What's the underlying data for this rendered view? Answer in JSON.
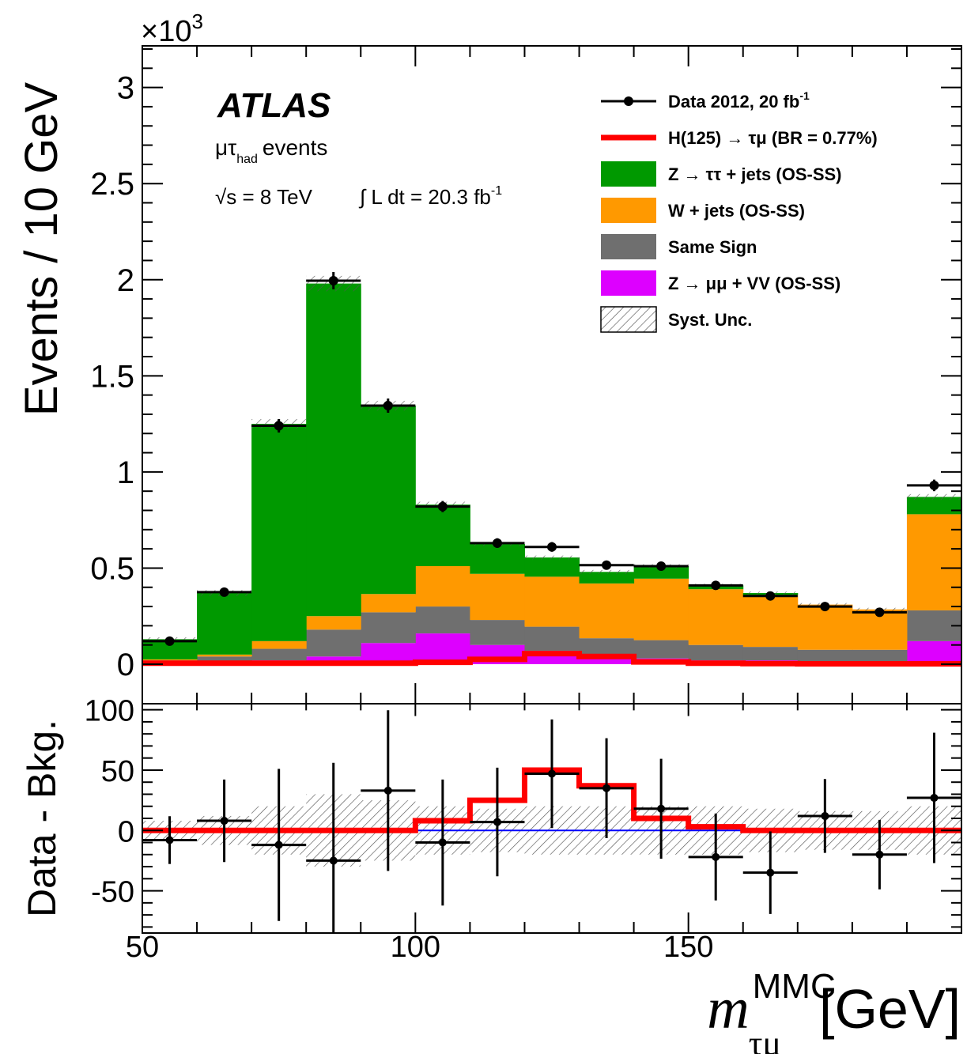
{
  "chart_data": [
    {
      "type": "bar",
      "stacked": true,
      "panel": "main",
      "experiment": "ATLAS",
      "annotations": [
        "μτ",
        "had",
        "events",
        "√s = 8 TeV",
        "∫ L dt = 20.3 fb",
        "-1"
      ],
      "ylabel": "Events / 10 GeV",
      "y_multiplier": "×10",
      "y_multiplier_exp": "3",
      "yunit_scale": 1000,
      "xlim": [
        50,
        200
      ],
      "ylim": [
        0,
        3200
      ],
      "yticks": [
        0,
        500,
        1000,
        1500,
        2000,
        2500,
        3000
      ],
      "ytick_labels": [
        "0",
        "0.5",
        "1",
        "1.5",
        "2",
        "2.5",
        "3"
      ],
      "bin_edges": [
        50,
        60,
        70,
        80,
        90,
        100,
        110,
        120,
        130,
        140,
        150,
        160,
        170,
        180,
        190,
        200
      ],
      "stack_order_bottom_to_top": [
        "zmumu_vv",
        "same_sign",
        "wjets",
        "ztautau"
      ],
      "series": [
        {
          "key": "zmumu_vv",
          "name": "Z → μμ + VV (OS-SS)",
          "color": "#dd00ff",
          "values": [
            5,
            10,
            20,
            40,
            110,
            160,
            100,
            70,
            50,
            30,
            20,
            20,
            15,
            15,
            120
          ]
        },
        {
          "key": "same_sign",
          "name": "Same Sign",
          "color": "#6f6f6f",
          "values": [
            15,
            30,
            60,
            140,
            160,
            140,
            130,
            125,
            85,
            95,
            80,
            70,
            60,
            60,
            160
          ]
        },
        {
          "key": "wjets",
          "name": "W + jets (OS-SS)",
          "color": "#ff9900",
          "values": [
            5,
            10,
            40,
            70,
            95,
            210,
            240,
            260,
            285,
            320,
            290,
            270,
            235,
            210,
            500
          ]
        },
        {
          "key": "ztautau",
          "name": "Z → ττ + jets (OS-SS)",
          "color": "#009900",
          "values": [
            105,
            320,
            1130,
            1730,
            980,
            320,
            155,
            100,
            60,
            65,
            20,
            10,
            0,
            0,
            90
          ]
        }
      ],
      "signal": {
        "name": "H(125) → τμ (BR = 0.77%)",
        "color": "#ff0000",
        "values": [
          5,
          5,
          5,
          5,
          5,
          10,
          25,
          55,
          40,
          12,
          5,
          3,
          2,
          2,
          2
        ]
      },
      "data": {
        "name": "Data 2012, 20 fb",
        "name_sup": "-1",
        "color": "#000000",
        "x": [
          55,
          65,
          75,
          85,
          95,
          105,
          115,
          125,
          135,
          145,
          155,
          165,
          175,
          185,
          195
        ],
        "y": [
          120,
          375,
          1240,
          1995,
          1345,
          820,
          630,
          610,
          515,
          510,
          410,
          355,
          300,
          270,
          930
        ],
        "yerr": [
          11,
          19,
          35,
          45,
          37,
          29,
          25,
          25,
          23,
          23,
          20,
          19,
          17,
          16,
          30
        ]
      },
      "syst_band": {
        "name": "Syst. Unc.",
        "values": [
          10,
          15,
          25,
          40,
          25,
          15,
          10,
          10,
          10,
          10,
          8,
          8,
          8,
          8,
          15
        ]
      },
      "legend": [
        {
          "label": "Data 2012, 20 fb",
          "sup": "-1",
          "style": "data"
        },
        {
          "label": "H(125) → τμ (BR = 0.77%)",
          "style": "line",
          "color": "#ff0000"
        },
        {
          "label": "Z → ττ + jets (OS-SS)",
          "style": "fill",
          "color": "#009900"
        },
        {
          "label": "W + jets (OS-SS)",
          "style": "fill",
          "color": "#ff9900"
        },
        {
          "label": "Same Sign",
          "style": "fill",
          "color": "#6f6f6f"
        },
        {
          "label": "Z → μμ + VV (OS-SS)",
          "style": "fill",
          "color": "#dd00ff"
        },
        {
          "label": "Syst. Unc.",
          "style": "hatch"
        }
      ],
      "legend_position": "top-right"
    },
    {
      "type": "scatter",
      "panel": "ratio",
      "ylabel": "Data - Bkg.",
      "xlabel": "m",
      "xlabel_sup": "MMC",
      "xlabel_sub": "τμ",
      "xlabel_unit": "[GeV]",
      "xlim": [
        50,
        200
      ],
      "ylim": [
        -85,
        105
      ],
      "yticks": [
        -50,
        0,
        50,
        100
      ],
      "ytick_labels": [
        "-50",
        "0",
        "50",
        "100"
      ],
      "xticks": [
        50,
        100,
        150
      ],
      "xtick_labels": [
        "50",
        "100",
        "150"
      ],
      "bin_edges": [
        50,
        60,
        70,
        80,
        90,
        100,
        110,
        120,
        130,
        140,
        150,
        160,
        170,
        180,
        190,
        200
      ],
      "data_minus_bkg": {
        "x": [
          55,
          65,
          75,
          85,
          95,
          105,
          115,
          125,
          135,
          145,
          155,
          165,
          175,
          185,
          195
        ],
        "y": [
          -8,
          8,
          -12,
          -25,
          33,
          -10,
          7,
          47,
          35,
          18,
          -22,
          -35,
          12,
          -20,
          27
        ],
        "yerr": [
          11,
          19,
          35,
          45,
          37,
          29,
          25,
          25,
          23,
          23,
          20,
          19,
          17,
          16,
          30
        ]
      },
      "signal_values": [
        0,
        0,
        0,
        0,
        0,
        8,
        25,
        50,
        37,
        10,
        3,
        0,
        0,
        0,
        0
      ],
      "syst_band_halfwidth": [
        8,
        12,
        20,
        30,
        25,
        20,
        18,
        20,
        20,
        20,
        20,
        18,
        16,
        16,
        20
      ],
      "zero_line_color": "#0000ff"
    }
  ]
}
